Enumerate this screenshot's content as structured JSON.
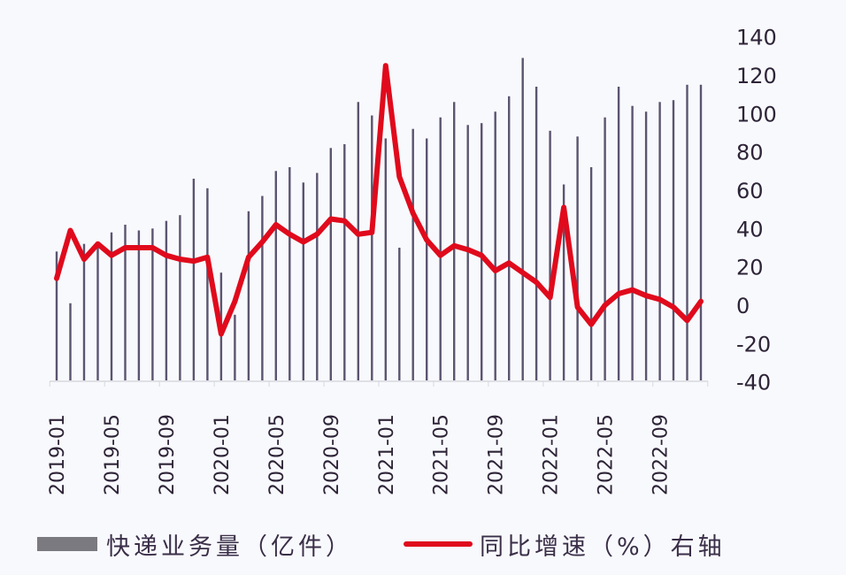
{
  "chart_data": {
    "type": "bar+line",
    "title": "",
    "xlabel": "",
    "ylabel": "",
    "right_axis": {
      "ticks": [
        "140",
        "120",
        "100",
        "80",
        "60",
        "40",
        "20",
        "0",
        "-20",
        "-40"
      ],
      "ylim": [
        -40,
        140
      ]
    },
    "x_tick_labels": [
      "2019-01",
      "2019-05",
      "2019-09",
      "2020-01",
      "2020-05",
      "2020-09",
      "2021-01",
      "2021-05",
      "2021-09",
      "2022-01",
      "2022-05",
      "2022-09"
    ],
    "categories": [
      "2019-01",
      "2019-02",
      "2019-03",
      "2019-04",
      "2019-05",
      "2019-06",
      "2019-07",
      "2019-08",
      "2019-09",
      "2019-10",
      "2019-11",
      "2019-12",
      "2020-01",
      "2020-02",
      "2020-03",
      "2020-04",
      "2020-05",
      "2020-06",
      "2020-07",
      "2020-08",
      "2020-09",
      "2020-10",
      "2020-11",
      "2020-12",
      "2021-01",
      "2021-02",
      "2021-03",
      "2021-04",
      "2021-05",
      "2021-06",
      "2021-07",
      "2021-08",
      "2021-09",
      "2021-10",
      "2021-11",
      "2021-12",
      "2022-01",
      "2022-02",
      "2022-03",
      "2022-04",
      "2022-05",
      "2022-06",
      "2022-07",
      "2022-08",
      "2022-09",
      "2022-10",
      "2022-11",
      "2022-12"
    ],
    "series": [
      {
        "name": "快递业务量（亿件）",
        "type": "bar",
        "color": "#5b5470",
        "note": "heights read against the displayed axis scale",
        "values": [
          28,
          1,
          32,
          33,
          38,
          42,
          39,
          40,
          44,
          47,
          66,
          61,
          17,
          -5,
          49,
          57,
          70,
          72,
          64,
          69,
          82,
          84,
          106,
          99,
          87,
          30,
          92,
          87,
          98,
          106,
          94,
          95,
          101,
          109,
          129,
          114,
          91,
          63,
          88,
          72,
          98,
          114,
          104,
          101,
          106,
          107,
          115,
          115
        ]
      },
      {
        "name": "同比增速（%）右轴",
        "type": "line",
        "color": "#e00a1c",
        "values": [
          14,
          39,
          24,
          32,
          26,
          30,
          30,
          30,
          26,
          24,
          23,
          25,
          -15,
          2,
          25,
          33,
          42,
          37,
          33,
          37,
          45,
          44,
          37,
          38,
          125,
          67,
          48,
          34,
          26,
          31,
          29,
          26,
          18,
          22,
          17,
          12,
          4,
          51,
          -1,
          -10,
          0,
          6,
          8,
          5,
          3,
          -1,
          -8,
          2
        ]
      }
    ],
    "legend_position": "bottom",
    "grid": false
  },
  "legend": {
    "bar_label": "快递业务量（亿件）",
    "line_label": "同比增速（%）右轴"
  }
}
